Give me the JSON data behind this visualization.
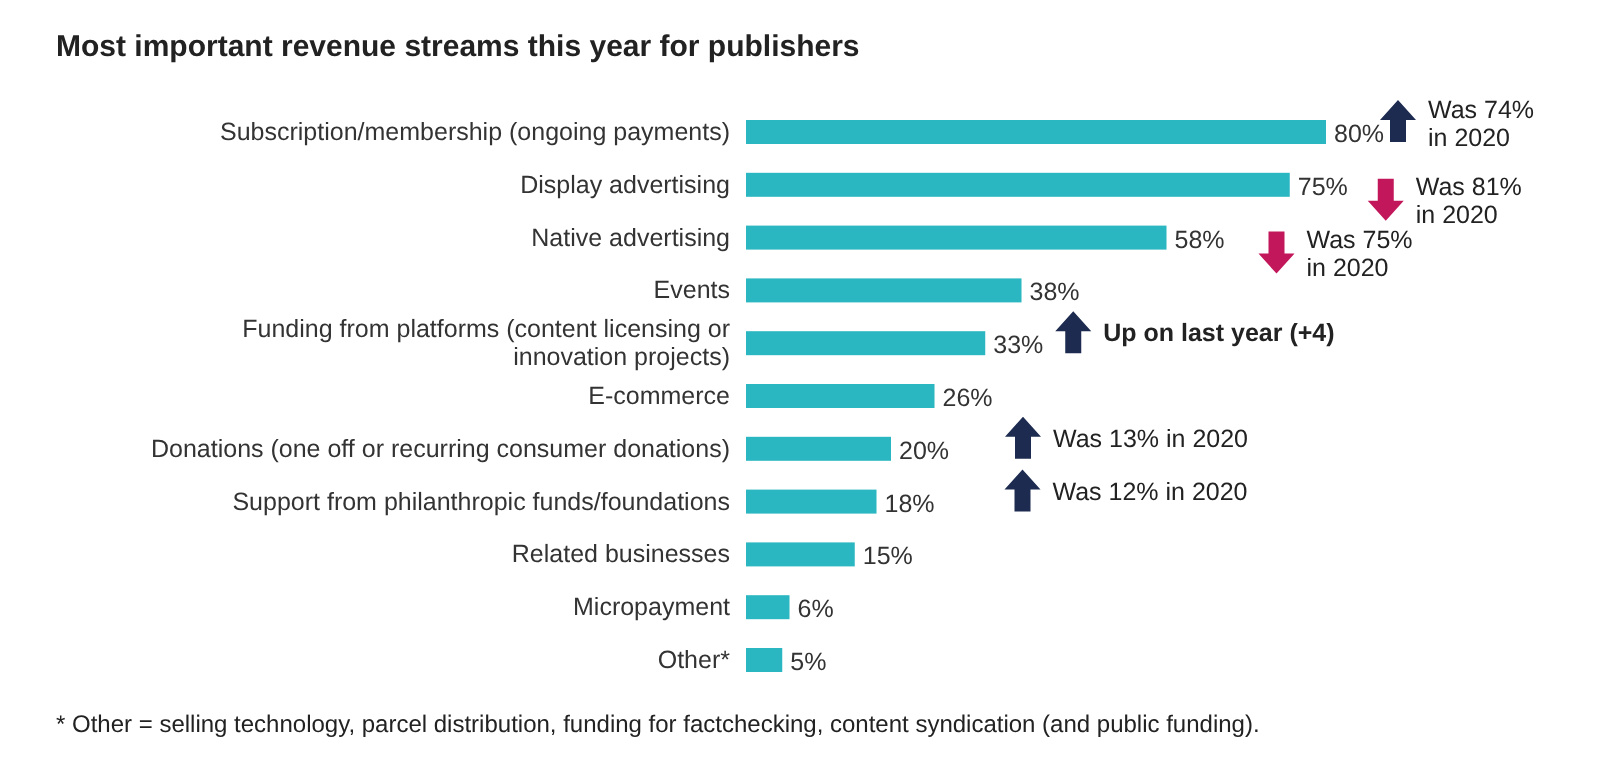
{
  "chart_data": {
    "type": "bar",
    "orientation": "horizontal",
    "title": "Most important revenue streams this year for publishers",
    "categories": [
      "Subscription/membership (ongoing payments)",
      "Display advertising",
      "Native advertising",
      "Events",
      "Funding from platforms (content licensing or innovation projects)",
      "E-commerce",
      "Donations (one off or recurring consumer donations)",
      "Support from philanthropic funds/foundations",
      "Related businesses",
      "Micropayment",
      "Other*"
    ],
    "values": [
      80,
      75,
      58,
      38,
      33,
      26,
      20,
      18,
      15,
      6,
      5
    ],
    "value_labels": [
      "80%",
      "75%",
      "58%",
      "38%",
      "33%",
      "26%",
      "20%",
      "18%",
      "15%",
      "6%",
      "5%"
    ],
    "color": "#2bb7c1",
    "annotations": [
      "Was 74% in 2020",
      "Was 81% in 2020",
      "Was 75% in 2020",
      "Up on last year (+4)",
      "Was 13% in 2020",
      "Was 12% in 2020",
      "* Other = selling technology, parcel distribution, funding for factchecking, content syndication (and public funding)."
    ]
  }
}
